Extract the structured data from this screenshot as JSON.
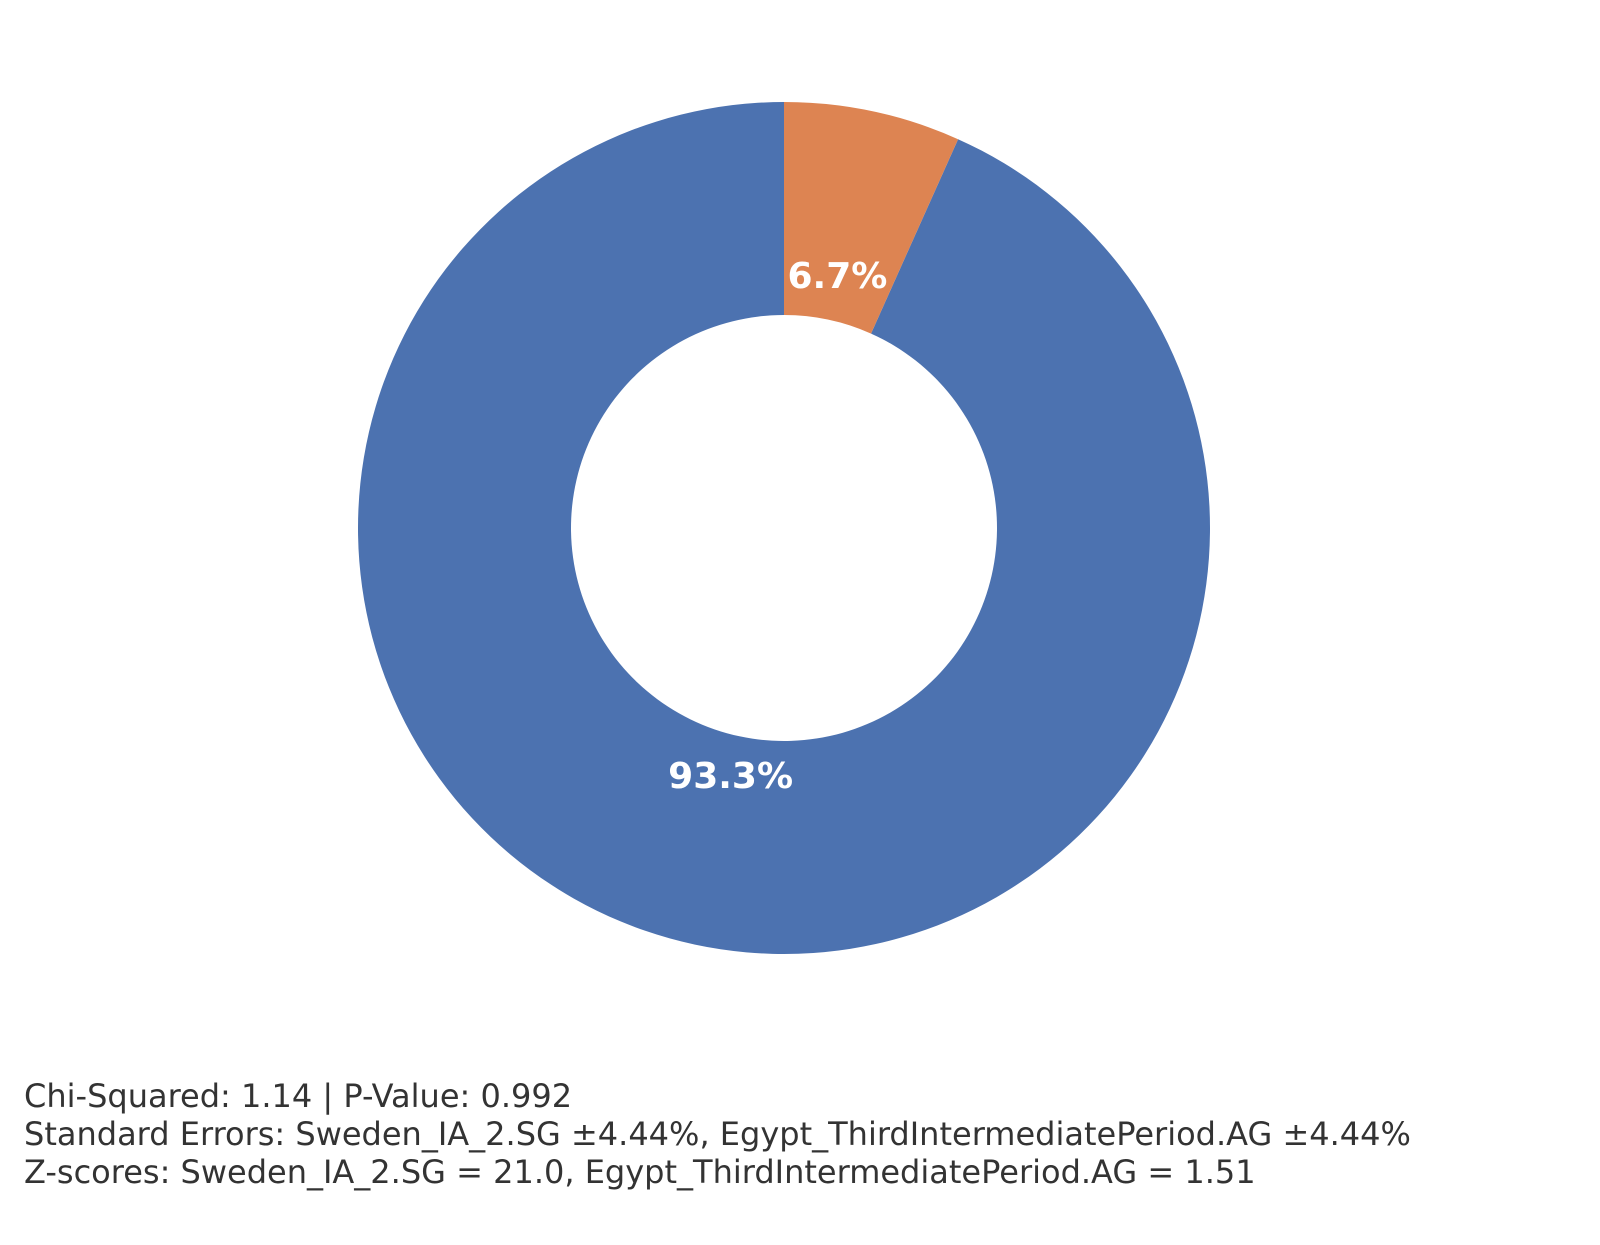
{
  "chart_data": {
    "type": "donut",
    "values": [
      93.3,
      6.7
    ],
    "value_labels": [
      "93.3%",
      "6.7%"
    ],
    "colors": [
      "#4c72b0",
      "#dd8452"
    ],
    "annotations": [
      "Chi-Squared: 1.14 | P-Value: 0.992",
      "Standard Errors: Sweden_IA_2.SG ±4.44%, Egypt_ThirdIntermediatePeriod.AG ±4.44%",
      "Z-scores: Sweden_IA_2.SG = 21.0, Egypt_ThirdIntermediatePeriod.AG = 1.51"
    ]
  }
}
